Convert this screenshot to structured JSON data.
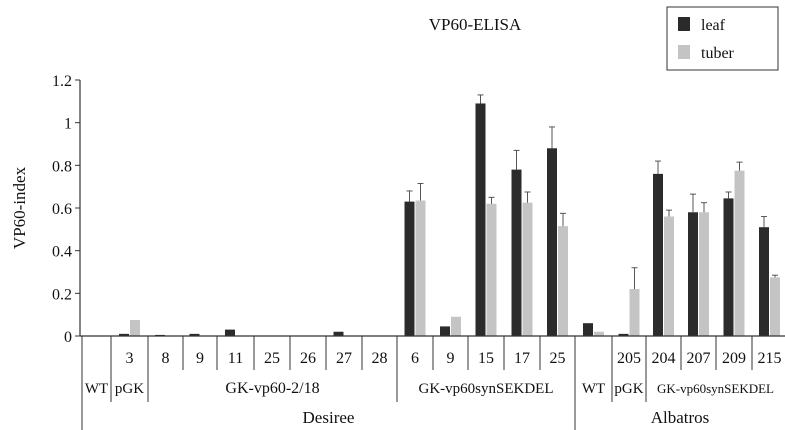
{
  "chart_data": {
    "type": "bar",
    "title": "VP60-ELISA",
    "ylabel": "VP60-index",
    "xlabel": "",
    "ylim": [
      0,
      1.2
    ],
    "yticks": [
      "0",
      "0.2",
      "0.4",
      "0.6",
      "0.8",
      "1",
      "1.2"
    ],
    "grid": false,
    "legend_position": "top-right",
    "categories": [
      "",
      "3",
      "8",
      "9",
      "11",
      "25",
      "26",
      "27",
      "28",
      "6",
      "9",
      "15",
      "17",
      "25",
      "",
      "205",
      "204",
      "207",
      "209",
      "215"
    ],
    "series": [
      {
        "name": "leaf",
        "color": "#2b2b2b",
        "values": [
          0,
          0.01,
          0.005,
          0.01,
          0.03,
          0,
          0,
          0.02,
          0,
          0.63,
          0.045,
          1.09,
          0.78,
          0.88,
          0.06,
          0.01,
          0.76,
          0.58,
          0.645,
          0.51
        ],
        "errors": [
          0,
          0,
          0,
          0,
          0,
          0,
          0,
          0,
          0,
          0.05,
          0,
          0.04,
          0.09,
          0.1,
          0,
          0,
          0.06,
          0.085,
          0.03,
          0.05
        ]
      },
      {
        "name": "tuber",
        "color": "#c4c4c4",
        "values": [
          0,
          0.075,
          0,
          0,
          0,
          0,
          0,
          0,
          0,
          0.635,
          0.09,
          0.62,
          0.625,
          0.515,
          0.02,
          0.22,
          0.56,
          0.58,
          0.775,
          0.275
        ],
        "errors": [
          0,
          0,
          0,
          0,
          0,
          0,
          0,
          0,
          0,
          0.08,
          0,
          0.03,
          0.05,
          0.06,
          0,
          0.1,
          0.03,
          0.045,
          0.04,
          0.01
        ]
      }
    ],
    "construct_labels": [
      "WT",
      "pGK",
      "GK-vp60-2/18",
      "GK-vp60synSEKDEL",
      "WT",
      "pGK",
      "GK-vp60synSEKDEL"
    ],
    "cultivar_labels": [
      "Desiree",
      "Albatros"
    ]
  }
}
